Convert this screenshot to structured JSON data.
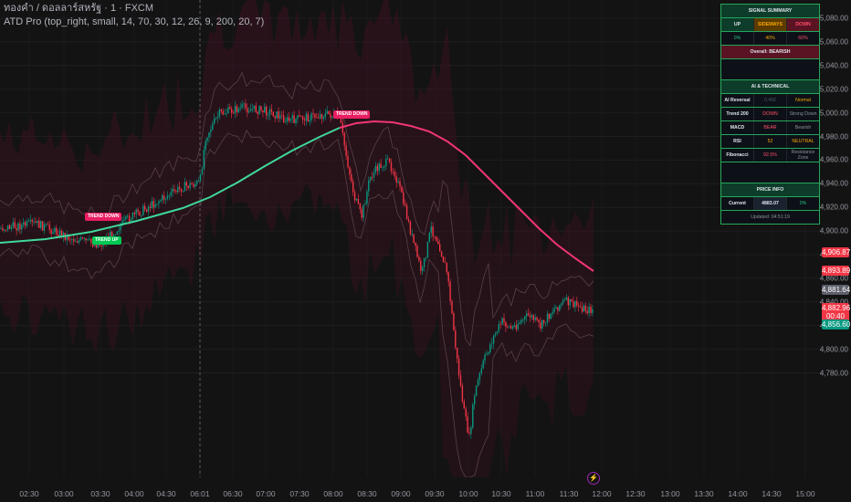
{
  "legend": {
    "symbol_line": "ทองคำ / ดอลลาร์สหรัฐ · 1 · FXCM",
    "indicator_line": "ATD Pro (top_right, small, 14, 70, 30, 12, 26, 9, 200, 20, 7)"
  },
  "price_axis": {
    "ticks": [
      "5,080.00",
      "5,060.00",
      "5,040.00",
      "5,020.00",
      "5,000.00",
      "4,980.00",
      "4,960.00",
      "4,940.00",
      "4,920.00",
      "4,900.00",
      "4,880.00",
      "4,860.00",
      "4,840.00",
      "4,820.00",
      "4,800.00",
      "4,780.00"
    ],
    "badges": [
      {
        "text": "4,906.87",
        "color": "#f23645"
      },
      {
        "text": "4,893.89",
        "color": "#f23645"
      },
      {
        "text": "4,881.64",
        "color": "#5d606b"
      },
      {
        "text": "4,882.96",
        "color": "#f23645"
      },
      {
        "text": "00:40",
        "color": "#f23645"
      },
      {
        "text": "4,856.60",
        "color": "#089981"
      }
    ]
  },
  "time_axis": {
    "ticks": [
      "02:30",
      "03:00",
      "03:30",
      "04:00",
      "04:30",
      "06:01",
      "06:30",
      "07:00",
      "07:30",
      "08:00",
      "08:30",
      "09:00",
      "09:30",
      "10:00",
      "10:30",
      "11:00",
      "11:30",
      "12:00",
      "12:30",
      "13:00",
      "13:30",
      "14:00",
      "14:30",
      "15:00"
    ]
  },
  "signals": [
    {
      "text": "TREND DOWN",
      "color": "#e91e63"
    },
    {
      "text": "TREND UP",
      "color": "#00c853"
    },
    {
      "text": "TREND DOWN",
      "color": "#e91e63"
    }
  ],
  "panel": {
    "summary_title": "SIGNAL SUMMARY",
    "up_label": "UP",
    "sideways_label": "SIDEWAYS",
    "down_label": "DOWN",
    "up_pct": "0%",
    "sideways_pct": "40%",
    "down_pct": "60%",
    "overall": "Overall: BEARISH",
    "ai_title": "AI & TECHNICAL",
    "rows": [
      {
        "name": "AI Reversal",
        "value": "0.456",
        "status": "Normal"
      },
      {
        "name": "Trend 200",
        "value": "DOWN",
        "status": "Strong Down"
      },
      {
        "name": "MACD",
        "value": "BEAR",
        "status": "Bearish"
      },
      {
        "name": "RSI",
        "value": "52",
        "status": "NEUTRAL"
      },
      {
        "name": "Fibonacci",
        "value": "92.5%",
        "status": "Resistance Zone"
      }
    ],
    "price_title": "PRICE INFO",
    "current_label": "Current",
    "current_value": "4883.07",
    "current_change": "0%",
    "updated": "Updated: 04:51:19"
  },
  "colors": {
    "up_candle": "#089981",
    "down_candle": "#f23645",
    "ema_up": "#3fd89b",
    "ema_down": "#f23672",
    "panel_border": "#26a65b",
    "sideways": "#f7a600"
  }
}
